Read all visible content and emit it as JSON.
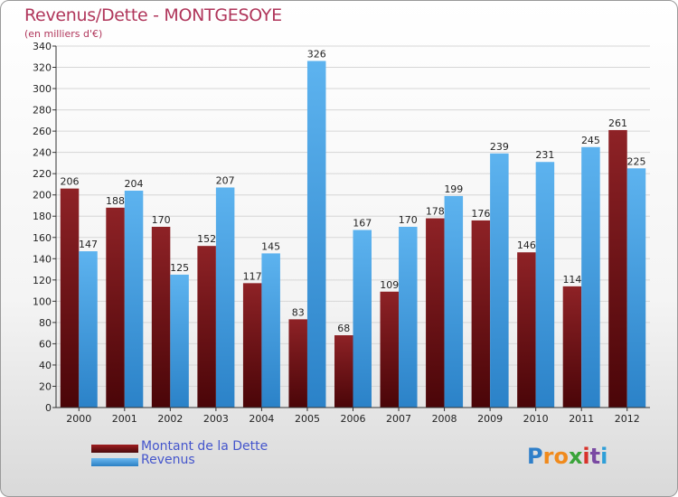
{
  "header": {
    "title": "Revenus/Dette - MONTGESOYE",
    "subtitle": "(en milliers d'€)"
  },
  "colors": {
    "dette": "#7a1518",
    "revenus": "#4aa3e6",
    "axis_text": "#222222",
    "grid": "#d6d6d6"
  },
  "chart_data": {
    "type": "bar",
    "title": "Revenus/Dette - MONTGESOYE",
    "subtitle": "(en milliers d'€)",
    "categories": [
      "2000",
      "2001",
      "2002",
      "2003",
      "2004",
      "2005",
      "2006",
      "2007",
      "2008",
      "2009",
      "2010",
      "2011",
      "2012"
    ],
    "series": [
      {
        "name": "Montant de la Dette",
        "values": [
          206,
          188,
          170,
          152,
          117,
          83,
          68,
          109,
          178,
          176,
          146,
          114,
          261
        ]
      },
      {
        "name": "Revenus",
        "values": [
          147,
          204,
          125,
          207,
          145,
          326,
          167,
          170,
          199,
          239,
          231,
          245,
          225
        ]
      }
    ],
    "ylim": [
      0,
      340
    ],
    "yticks": [
      0,
      20,
      40,
      60,
      80,
      100,
      120,
      140,
      160,
      180,
      200,
      220,
      240,
      260,
      280,
      300,
      320,
      340
    ],
    "grid": true,
    "legend_position": "bottom-left"
  },
  "legend": {
    "items": [
      {
        "label": "Montant de la Dette",
        "color": "#7a1518"
      },
      {
        "label": "Revenus",
        "color": "#4aa3e6"
      }
    ]
  },
  "logo": {
    "letters": [
      "P",
      "r",
      "o",
      "x",
      "i",
      "t",
      "i"
    ],
    "colors": [
      "#2f7fc9",
      "#f08a1c",
      "#f08a1c",
      "#3aa43a",
      "#d8322b",
      "#7a4aa3",
      "#2f9fd8"
    ]
  }
}
